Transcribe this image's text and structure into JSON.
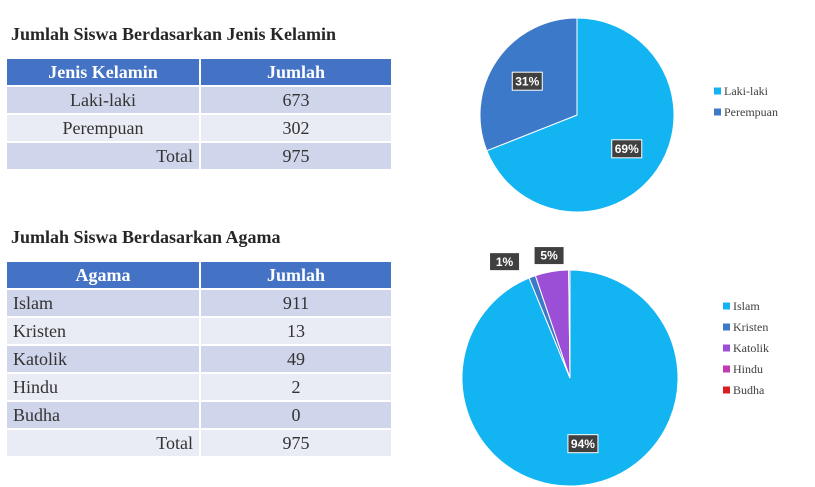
{
  "tables": [
    {
      "title": "Jumlah Siswa Berdasarkan Jenis Kelamin",
      "header": [
        "Jenis Kelamin",
        "Jumlah"
      ],
      "rows": [
        [
          "Laki-laki",
          "673"
        ],
        [
          "Perempuan",
          "302"
        ],
        [
          "Total",
          "975"
        ]
      ]
    },
    {
      "title": "Jumlah Siswa Berdasarkan Agama",
      "header": [
        "Agama",
        "Jumlah"
      ],
      "rows": [
        [
          "Islam",
          "911"
        ],
        [
          "Kristen",
          "13"
        ],
        [
          "Katolik",
          "49"
        ],
        [
          "Hindu",
          "2"
        ],
        [
          "Budha",
          "0"
        ],
        [
          "Total",
          "975"
        ]
      ]
    }
  ],
  "chart_data": [
    {
      "type": "pie",
      "categories": [
        "Laki-laki",
        "Perempuan"
      ],
      "values": [
        69,
        31
      ],
      "value_labels": [
        "69%",
        "31%"
      ],
      "colors": [
        "#13b4f2",
        "#3d79c9"
      ],
      "legend": "right"
    },
    {
      "type": "pie",
      "categories": [
        "Islam",
        "Kristen",
        "Katolik",
        "Hindu",
        "Budha"
      ],
      "values": [
        94,
        1,
        5,
        0.2,
        0
      ],
      "value_labels": [
        "94%",
        "1%",
        "5%",
        null,
        null
      ],
      "colors": [
        "#13b4f2",
        "#3d79c9",
        "#9b4fd6",
        "#c43bb0",
        "#d81e1e"
      ],
      "legend": "right"
    }
  ]
}
